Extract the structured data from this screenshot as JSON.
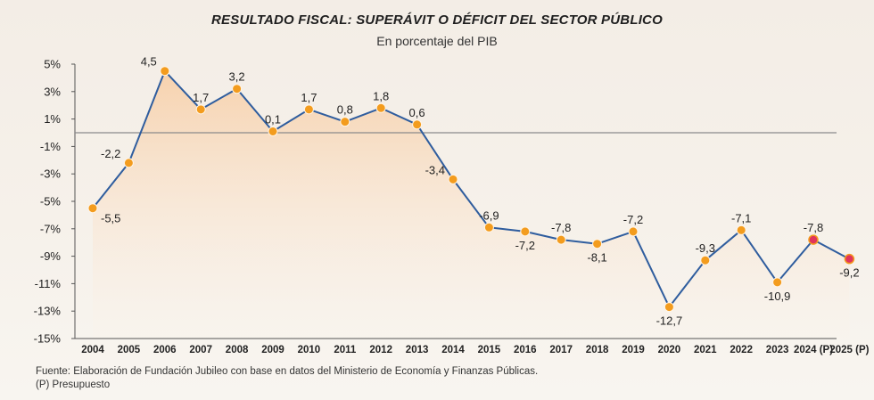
{
  "header": {
    "title": "RESULTADO FISCAL: SUPERÁVIT O DÉFICIT DEL SECTOR PÚBLICO",
    "subtitle": "En porcentaje del PIB"
  },
  "footer": {
    "source": "Fuente: Elaboración de Fundación Jubileo con base en datos del Ministerio de Economía y Finanzas Públicas.",
    "note": "(P) Presupuesto"
  },
  "colors": {
    "line": "#2f5d9e",
    "marker": "#f39c1e",
    "marker_projected": "#e0345c",
    "zero_line": "#8a8a8a",
    "area_top": "#f8c89a"
  },
  "chart_data": {
    "type": "line",
    "title": "RESULTADO FISCAL: SUPERÁVIT O DÉFICIT DEL SECTOR PÚBLICO",
    "subtitle": "En porcentaje del PIB",
    "categories": [
      "2004",
      "2005",
      "2006",
      "2007",
      "2008",
      "2009",
      "2010",
      "2011",
      "2012",
      "2013",
      "2014",
      "2015",
      "2016",
      "2017",
      "2018",
      "2019",
      "2020",
      "2021",
      "2022",
      "2023",
      "2024 (P)",
      "2025 (P)"
    ],
    "values": [
      -5.5,
      -2.2,
      4.5,
      1.7,
      3.2,
      0.1,
      1.7,
      0.8,
      1.8,
      0.6,
      -3.4,
      -6.9,
      -7.2,
      -7.8,
      -8.1,
      -7.2,
      -12.7,
      -9.3,
      -7.1,
      -10.9,
      -7.8,
      -9.2
    ],
    "data_labels": [
      "-5,5",
      "-2,2",
      "4,5",
      "1,7",
      "3,2",
      "0,1",
      "1,7",
      "0,8",
      "1,8",
      "0,6",
      "-3,4",
      "-6,9",
      "-7,2",
      "-7,8",
      "-8,1",
      "-7,2",
      "-12,7",
      "-9,3",
      "-7,1",
      "-10,9",
      "-7,8",
      "-9,2"
    ],
    "projected": [
      false,
      false,
      false,
      false,
      false,
      false,
      false,
      false,
      false,
      false,
      false,
      false,
      false,
      false,
      false,
      false,
      false,
      false,
      false,
      false,
      true,
      true
    ],
    "label_below": [
      true,
      false,
      false,
      false,
      false,
      false,
      false,
      false,
      false,
      false,
      false,
      false,
      true,
      false,
      true,
      false,
      true,
      false,
      false,
      true,
      false,
      true
    ],
    "label_left": [
      false,
      true,
      true,
      false,
      false,
      false,
      false,
      false,
      false,
      false,
      true,
      false,
      false,
      false,
      false,
      false,
      false,
      false,
      false,
      false,
      false,
      false
    ],
    "yticks": [
      "5%",
      "3%",
      "1%",
      "-1%",
      "-3%",
      "-5%",
      "-7%",
      "-9%",
      "-11%",
      "-13%",
      "-15%"
    ],
    "ytick_values": [
      5,
      3,
      1,
      -1,
      -3,
      -5,
      -7,
      -9,
      -11,
      -13,
      -15
    ],
    "ylim": [
      -15,
      5
    ],
    "reference_line": 0,
    "grid": false,
    "legend": "none"
  }
}
